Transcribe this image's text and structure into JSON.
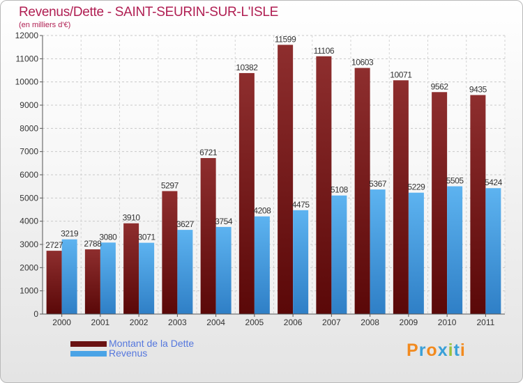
{
  "chart_data": {
    "type": "bar",
    "title": "Revenus/Dette - SAINT-SEURIN-SUR-L'ISLE",
    "subtitle": "(en milliers d'€)",
    "xlabel": "",
    "ylabel": "",
    "ylim": [
      0,
      12000
    ],
    "yticks": [
      0,
      1000,
      2000,
      3000,
      4000,
      5000,
      6000,
      7000,
      8000,
      9000,
      10000,
      11000,
      12000
    ],
    "grid": true,
    "categories": [
      "2000",
      "2001",
      "2002",
      "2003",
      "2004",
      "2005",
      "2006",
      "2007",
      "2008",
      "2009",
      "2010",
      "2011"
    ],
    "series": [
      {
        "name": "Montant de la Dette",
        "color": "#7a1a1a",
        "values": [
          2727,
          2788,
          3910,
          5297,
          6721,
          10382,
          11599,
          11106,
          10603,
          10071,
          9562,
          9435
        ],
        "labels": [
          "2727",
          "2788",
          "3910",
          "5297",
          "6721",
          "10382",
          "11599",
          "11106",
          "10603",
          "10071",
          "9562",
          "9435"
        ]
      },
      {
        "name": "Revenus",
        "color": "#4aa3e6",
        "values": [
          3219,
          3080,
          3071,
          3627,
          3754,
          4208,
          4475,
          5108,
          5367,
          5229,
          5505,
          5424
        ],
        "labels": [
          "3219",
          "3080",
          "3071",
          "3627",
          "3754",
          "4208",
          "4475",
          "5108",
          "5367",
          "5229",
          "5505",
          "5424"
        ]
      }
    ],
    "legend_position": "bottom-left"
  },
  "logo": {
    "letters": [
      "P",
      "r",
      "o",
      "x",
      "i",
      "t",
      "i"
    ],
    "colors": [
      "#f28a1e",
      "#3aa0d8",
      "#f28a1e",
      "#3aa0d8",
      "#9ac23c",
      "#3aa0d8",
      "#f28a1e"
    ]
  }
}
